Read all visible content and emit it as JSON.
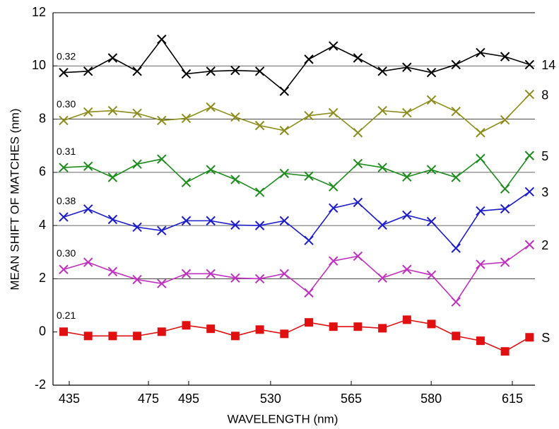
{
  "chart_data": {
    "type": "line",
    "xlabel": "WAVELENGTH  (nm)",
    "ylabel": "MEAN SHIFT OF MATCHES  (nm)",
    "categories": [
      null,
      null,
      null,
      null,
      null,
      null,
      null,
      null,
      null,
      null,
      null,
      null,
      null,
      null,
      null,
      null,
      null,
      null,
      null,
      null
    ],
    "xticks": [
      {
        "value": 0.23,
        "label": "435"
      },
      {
        "value": 3.46,
        "label": "475"
      },
      {
        "value": 5.1,
        "label": "495"
      },
      {
        "value": 8.44,
        "label": "530"
      },
      {
        "value": 11.73,
        "label": "565"
      },
      {
        "value": 14.99,
        "label": "580"
      },
      {
        "value": 18.3,
        "label": "615"
      }
    ],
    "ylim": [
      -2,
      12
    ],
    "yticks": [
      -2,
      0,
      2,
      4,
      6,
      8,
      10,
      12
    ],
    "grid": true,
    "series": [
      {
        "name": "14",
        "annotation": "0.32",
        "color": "#000000",
        "marker": "x",
        "values": [
          9.75,
          9.8,
          10.3,
          9.8,
          11.0,
          9.7,
          9.8,
          9.83,
          9.8,
          9.05,
          10.25,
          10.75,
          10.3,
          9.8,
          9.95,
          9.75,
          10.05,
          10.5,
          10.35,
          10.05
        ]
      },
      {
        "name": "8",
        "annotation": "0.30",
        "color": "#8c8c1c",
        "marker": "x",
        "values": [
          7.95,
          8.27,
          8.32,
          8.22,
          7.95,
          8.03,
          8.45,
          8.08,
          7.76,
          7.57,
          8.13,
          8.24,
          7.49,
          8.32,
          8.24,
          8.72,
          8.29,
          7.49,
          7.97,
          8.93
        ]
      },
      {
        "name": "5",
        "annotation": "0.31",
        "color": "#1c8c1c",
        "marker": "x",
        "values": [
          6.18,
          6.23,
          5.81,
          6.31,
          6.5,
          5.62,
          6.1,
          5.73,
          5.25,
          5.96,
          5.86,
          5.46,
          6.33,
          6.18,
          5.83,
          6.1,
          5.81,
          6.52,
          5.38,
          6.63
        ]
      },
      {
        "name": "3",
        "annotation": "0.38",
        "color": "#1c1ccc",
        "marker": "x",
        "values": [
          4.32,
          4.62,
          4.23,
          3.94,
          3.81,
          4.18,
          4.18,
          4.02,
          4.0,
          4.18,
          3.44,
          4.66,
          4.87,
          4.02,
          4.39,
          4.15,
          3.15,
          4.55,
          4.63,
          5.27
        ]
      },
      {
        "name": "2",
        "annotation": "0.30",
        "color": "#c030c0",
        "marker": "x",
        "values": [
          2.35,
          2.62,
          2.27,
          1.97,
          1.82,
          2.19,
          2.19,
          2.03,
          2.0,
          2.19,
          1.47,
          2.67,
          2.85,
          2.03,
          2.35,
          2.14,
          1.13,
          2.54,
          2.62,
          3.28
        ]
      },
      {
        "name": "S",
        "annotation": "0.21",
        "color": "#e01010",
        "marker": "square",
        "values": [
          0.01,
          -0.15,
          -0.15,
          -0.15,
          0.01,
          0.25,
          0.12,
          -0.15,
          0.09,
          -0.07,
          0.36,
          0.2,
          0.2,
          0.14,
          0.46,
          0.3,
          -0.15,
          -0.33,
          -0.73,
          -0.2
        ]
      }
    ]
  }
}
